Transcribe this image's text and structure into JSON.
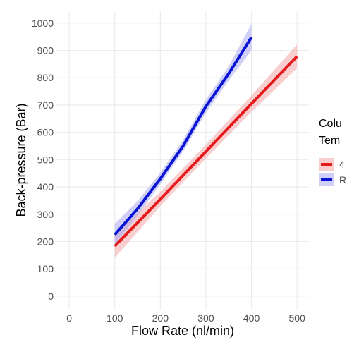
{
  "chart_data": {
    "type": "line",
    "x_label": "Flow Rate (nl/min)",
    "y_label": "Back-pressure (Bar)",
    "legend_title": [
      "Colu",
      "Tem"
    ],
    "legend_position": "right",
    "grid": true,
    "xlim": [
      -28,
      526
    ],
    "ylim": [
      -52,
      1046
    ],
    "xticks": [
      0,
      100,
      200,
      300,
      400,
      500
    ],
    "yticks": [
      0,
      100,
      200,
      300,
      400,
      500,
      600,
      700,
      800,
      900,
      1000
    ],
    "series": [
      {
        "name": "4",
        "color": "#e41a1c",
        "band_color": "#f4a6a8",
        "x": [
          100,
          200,
          300,
          400,
          500
        ],
        "values": [
          183,
          355,
          530,
          705,
          878
        ],
        "lower": [
          140,
          330,
          505,
          675,
          835
        ],
        "upper": [
          228,
          382,
          555,
          735,
          922
        ]
      },
      {
        "name": "R",
        "color": "#0a14d4",
        "band_color": "#a8a8f0",
        "x": [
          100,
          150,
          200,
          250,
          300,
          350,
          400
        ],
        "values": [
          225,
          320,
          430,
          550,
          695,
          815,
          948
        ],
        "lower": [
          188,
          295,
          410,
          530,
          672,
          790,
          900
        ],
        "upper": [
          265,
          348,
          452,
          572,
          720,
          842,
          998
        ]
      }
    ]
  }
}
